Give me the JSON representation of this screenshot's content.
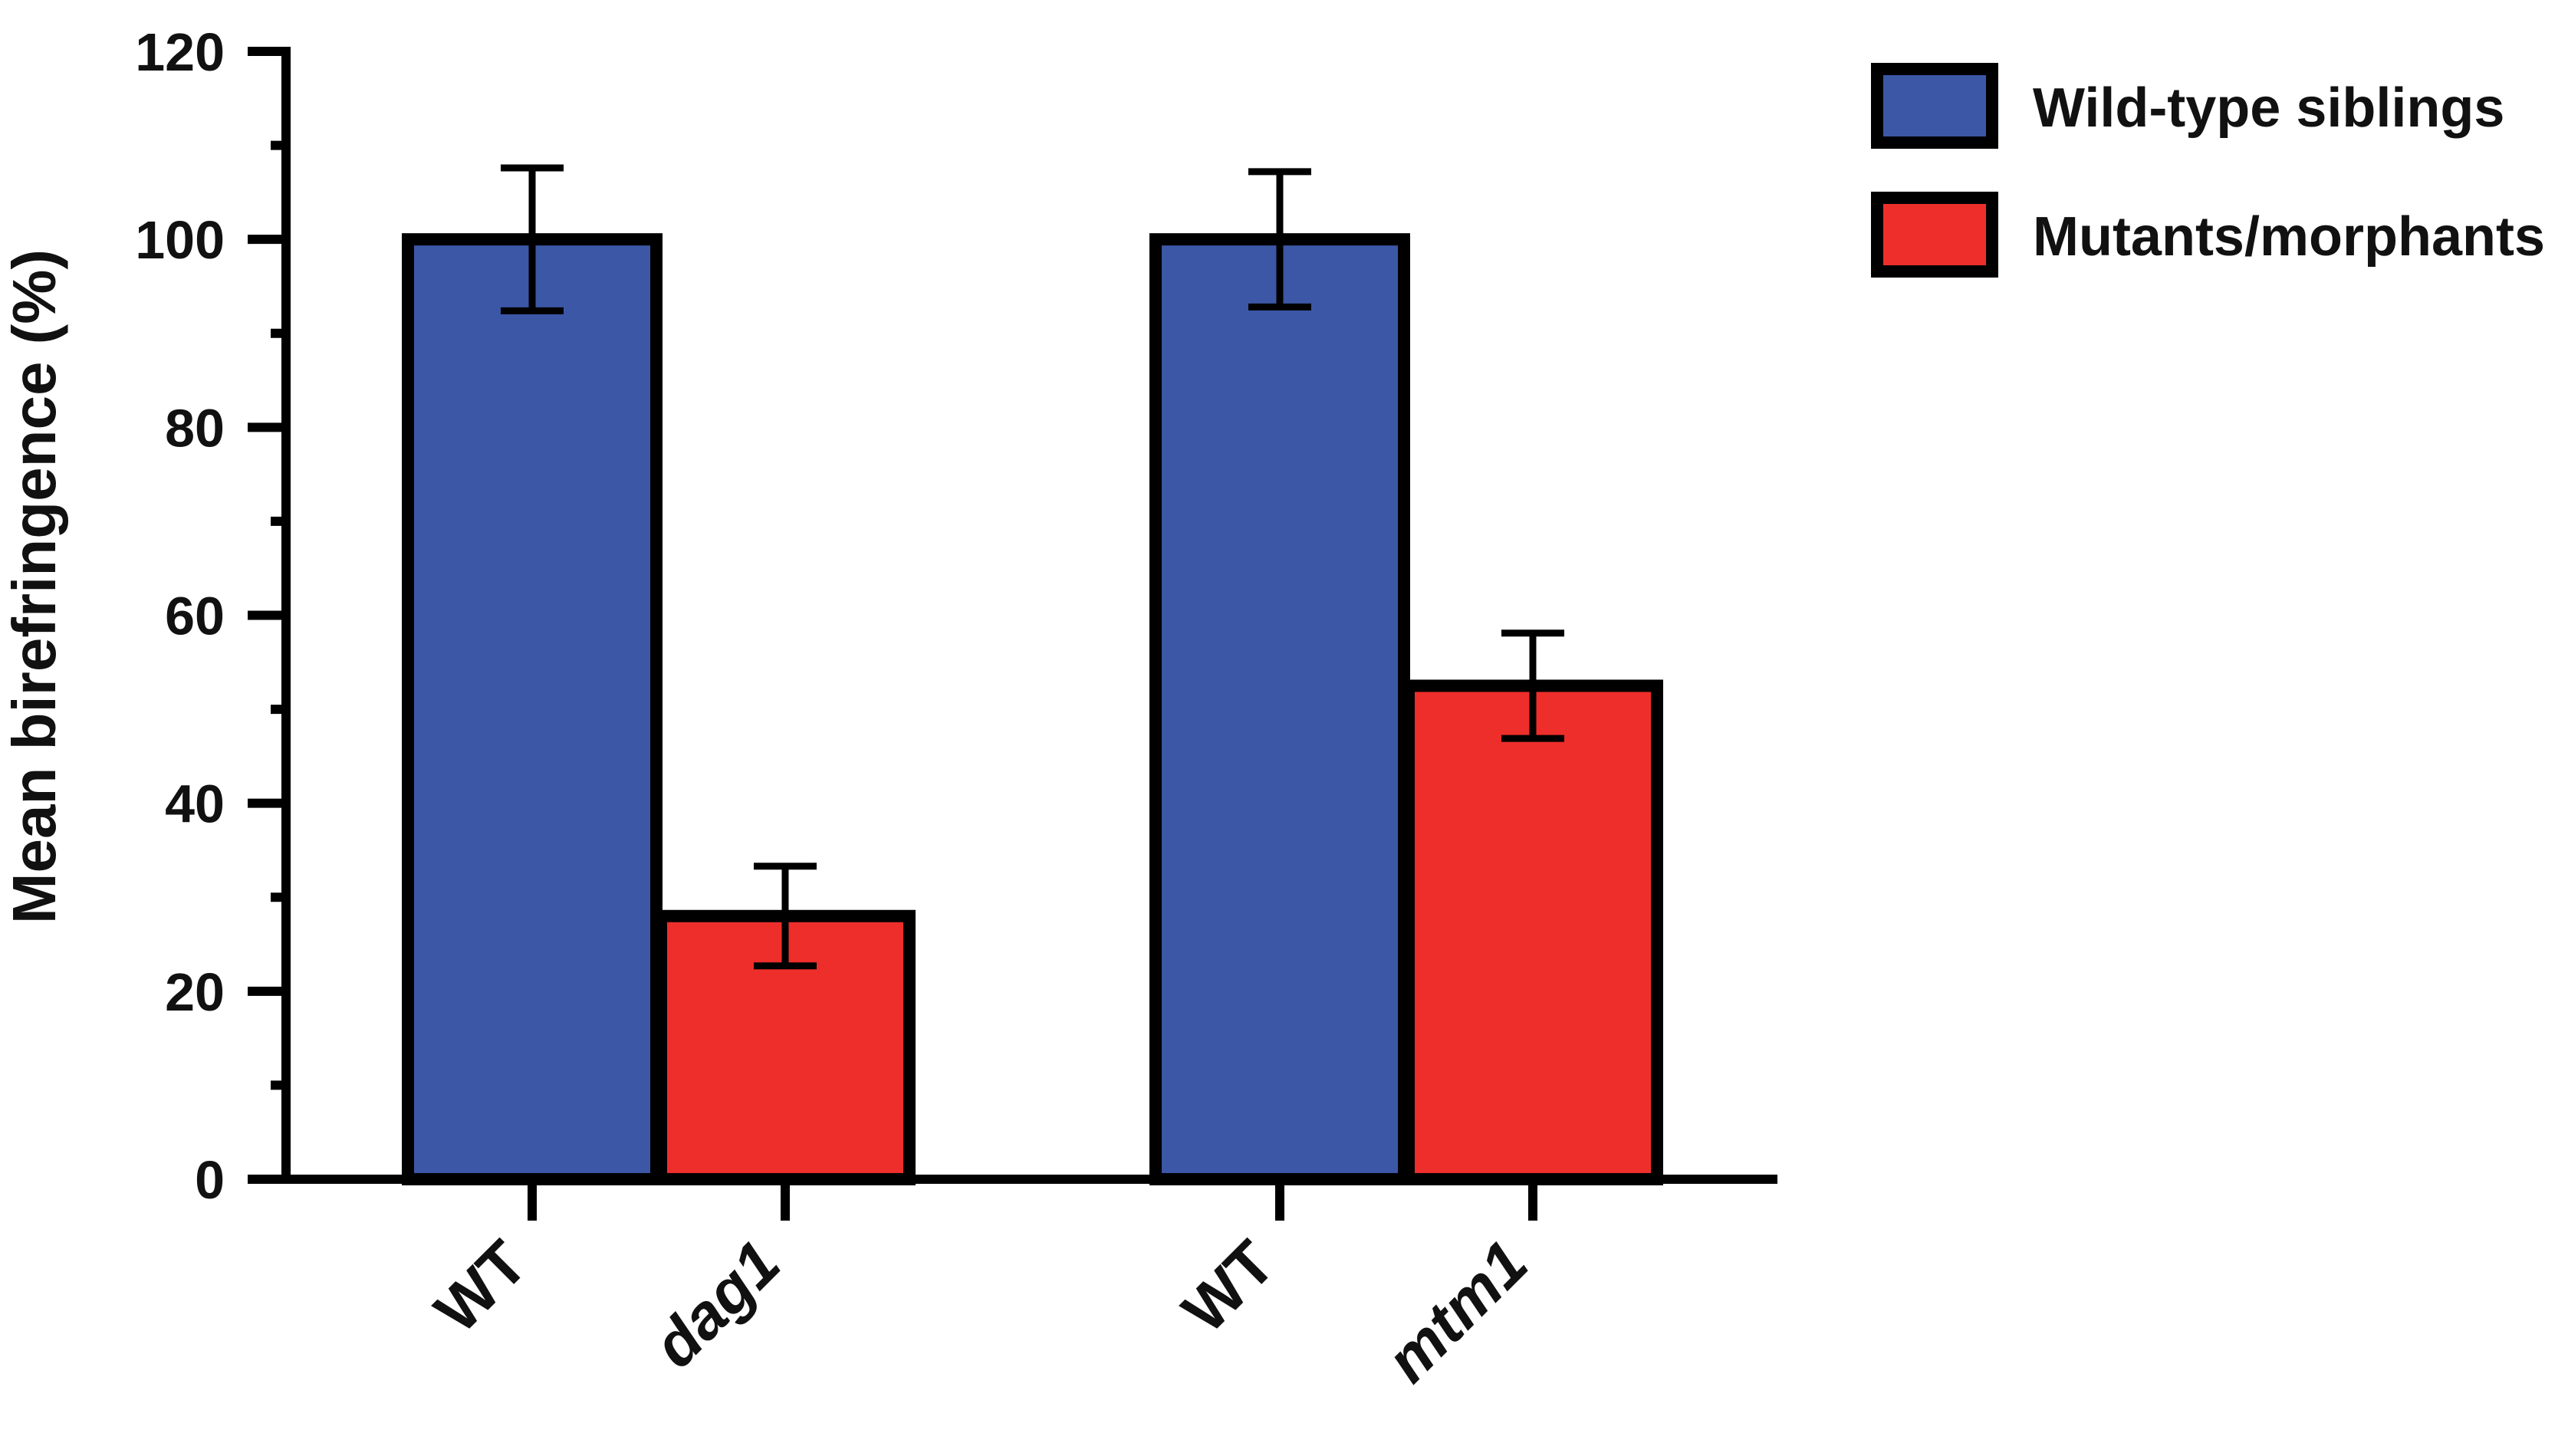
{
  "chart_data": {
    "type": "bar",
    "ylabel": "Mean birefringence (%)",
    "ylim": [
      0,
      120
    ],
    "ytick_values": [
      0,
      20,
      40,
      60,
      80,
      100,
      120
    ],
    "ytick_labels": [
      "0",
      "20",
      "40",
      "60",
      "80",
      "100",
      "120"
    ],
    "grid": false,
    "legend_placement": "top-right",
    "legend": [
      {
        "label": "Wild-type siblings",
        "color": "#3c57a6"
      },
      {
        "label": "Mutants/morphants",
        "color": "#ee2e2b"
      }
    ],
    "groups": [
      "dag1",
      "mtm1"
    ],
    "bars": [
      {
        "category": "WT",
        "italic": false,
        "series": "Wild-type siblings",
        "value": 100,
        "error": 7.6,
        "color": "#3c57a6"
      },
      {
        "category": "dag1",
        "italic": true,
        "series": "Mutants/morphants",
        "value": 28,
        "error": 5.3,
        "color": "#ee2e2b"
      },
      {
        "category": "WT",
        "italic": false,
        "series": "Wild-type siblings",
        "value": 100,
        "error": 7.2,
        "color": "#3c57a6"
      },
      {
        "category": "mtm1",
        "italic": true,
        "series": "Mutants/morphants",
        "value": 52.5,
        "error": 5.6,
        "color": "#ee2e2b"
      }
    ]
  }
}
